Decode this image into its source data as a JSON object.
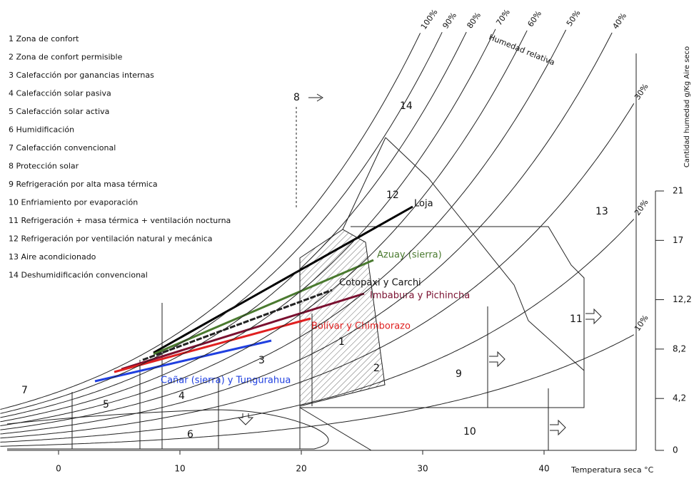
{
  "legend": [
    "1  Zona de confort",
    "2  Zona de confort permisible",
    "3  Calefacción por ganancias internas",
    "4  Calefacción solar pasiva",
    "5  Calefacción solar activa",
    "6  Humidificación",
    "7  Calefacción convencional",
    "8  Protección solar",
    "9  Refrigeración por alta masa térmica",
    "10 Enfriamiento por evaporación",
    "11 Refrigeración + masa térmica + ventilación nocturna",
    "12 Refrigeración por ventilación natural y mecánica",
    "13  Aire acondicionado",
    "14  Deshumidificación convencional"
  ],
  "rh_axis_title": "Humedad relativa",
  "relative_humidity": [
    {
      "value": 100,
      "label": "100%"
    },
    {
      "value": 90,
      "label": "90%"
    },
    {
      "value": 80,
      "label": "80%"
    },
    {
      "value": 70,
      "label": "70%"
    },
    {
      "value": 60,
      "label": "60%"
    },
    {
      "value": 50,
      "label": "50%"
    },
    {
      "value": 40,
      "label": "40%"
    },
    {
      "value": 30,
      "label": "30%"
    },
    {
      "value": 20,
      "label": "20%"
    },
    {
      "value": 10,
      "label": "10%"
    }
  ],
  "x_axis": {
    "title": "Temperatura seca °C",
    "ticks": [
      0,
      10,
      20,
      30,
      40
    ]
  },
  "y_axis": {
    "title": "Cantidad humedad g/Kg Aire seco",
    "ticks": [
      0,
      {
        "value": 4.2,
        "label": "4,2"
      },
      {
        "value": 8.2,
        "label": "8,2"
      },
      {
        "value": 12.2,
        "label": "12,2"
      },
      17,
      21
    ]
  },
  "zones": [
    "1",
    "2",
    "3",
    "4",
    "5",
    "6",
    "7",
    "8",
    "9",
    "10",
    "11",
    "12",
    "13",
    "14"
  ],
  "regions": [
    "Loja",
    "Azuay (sierra)",
    "Cotopaxi y Carchi",
    "Imbabura y Pichincha",
    "Bolívar y Chimborazo",
    "Cañar (sierra) y Tungurahua"
  ]
}
